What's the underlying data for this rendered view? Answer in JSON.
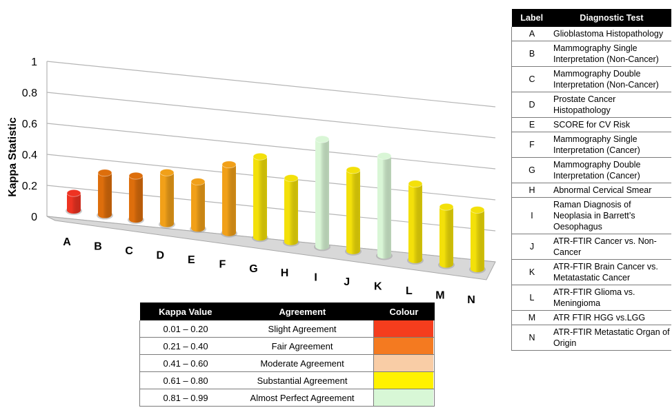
{
  "chart_data": {
    "type": "bar",
    "ylabel": "Kappa Statistic",
    "ylim": [
      0,
      1
    ],
    "yticks": [
      "0",
      "0.2",
      "0.4",
      "0.6",
      "0.8",
      "1"
    ],
    "categories": [
      "A",
      "B",
      "C",
      "D",
      "E",
      "F",
      "G",
      "H",
      "I",
      "J",
      "K",
      "L",
      "M",
      "N"
    ],
    "values": [
      0.11,
      0.27,
      0.28,
      0.33,
      0.3,
      0.44,
      0.52,
      0.41,
      0.69,
      0.52,
      0.64,
      0.49,
      0.37,
      0.38
    ],
    "colors": [
      "#ee3322",
      "#dd6e0c",
      "#dd6e0c",
      "#f1a019",
      "#f1a019",
      "#f1a019",
      "#f3e00a",
      "#f3e00a",
      "#d9f6d6",
      "#f3e00a",
      "#d9f6d6",
      "#f3e00a",
      "#f3e00a",
      "#f3e00a"
    ],
    "grid": true
  },
  "diagnostic_table": {
    "headers": [
      "Label",
      "Diagnostic Test"
    ],
    "rows": [
      {
        "label": "A",
        "test": "Glioblastoma Histopathology"
      },
      {
        "label": "B",
        "test": "Mammography Single Interpretation (Non-Cancer)"
      },
      {
        "label": "C",
        "test": "Mammography Double Interpretation (Non-Cancer)"
      },
      {
        "label": "D",
        "test": "Prostate Cancer Histopathology"
      },
      {
        "label": "E",
        "test": "SCORE for CV Risk"
      },
      {
        "label": "F",
        "test": "Mammography Single Interpretation (Cancer)"
      },
      {
        "label": "G",
        "test": "Mammography Double Interpretation (Cancer)"
      },
      {
        "label": "H",
        "test": "Abnormal Cervical Smear"
      },
      {
        "label": "I",
        "test": "Raman Diagnosis of Neoplasia in Barrett’s Oesophagus"
      },
      {
        "label": "J",
        "test": "ATR-FTIR Cancer vs. Non-Cancer"
      },
      {
        "label": "K",
        "test": "ATR-FTIR Brain Cancer vs. Metatastatic Cancer"
      },
      {
        "label": "L",
        "test": "ATR-FTIR Glioma vs. Meningioma"
      },
      {
        "label": "M",
        "test": "ATR FTIR HGG vs.LGG"
      },
      {
        "label": "N",
        "test": "ATR-FTIR Metastatic Organ of Origin"
      }
    ]
  },
  "kappa_table": {
    "headers": [
      "Kappa Value",
      "Agreement",
      "Colour"
    ],
    "rows": [
      {
        "range": "0.01 – 0.20",
        "agreement": "Slight Agreement",
        "color": "#f53d1d"
      },
      {
        "range": "0.21 – 0.40",
        "agreement": "Fair Agreement",
        "color": "#f47a20"
      },
      {
        "range": "0.41 – 0.60",
        "agreement": "Moderate Agreement",
        "color": "#f9cda6"
      },
      {
        "range": "0.61 – 0.80",
        "agreement": "Substantial Agreement",
        "color": "#fff200"
      },
      {
        "range": "0.81 – 0.99",
        "agreement": "Almost Perfect Agreement",
        "color": "#d8f7d6"
      }
    ]
  }
}
